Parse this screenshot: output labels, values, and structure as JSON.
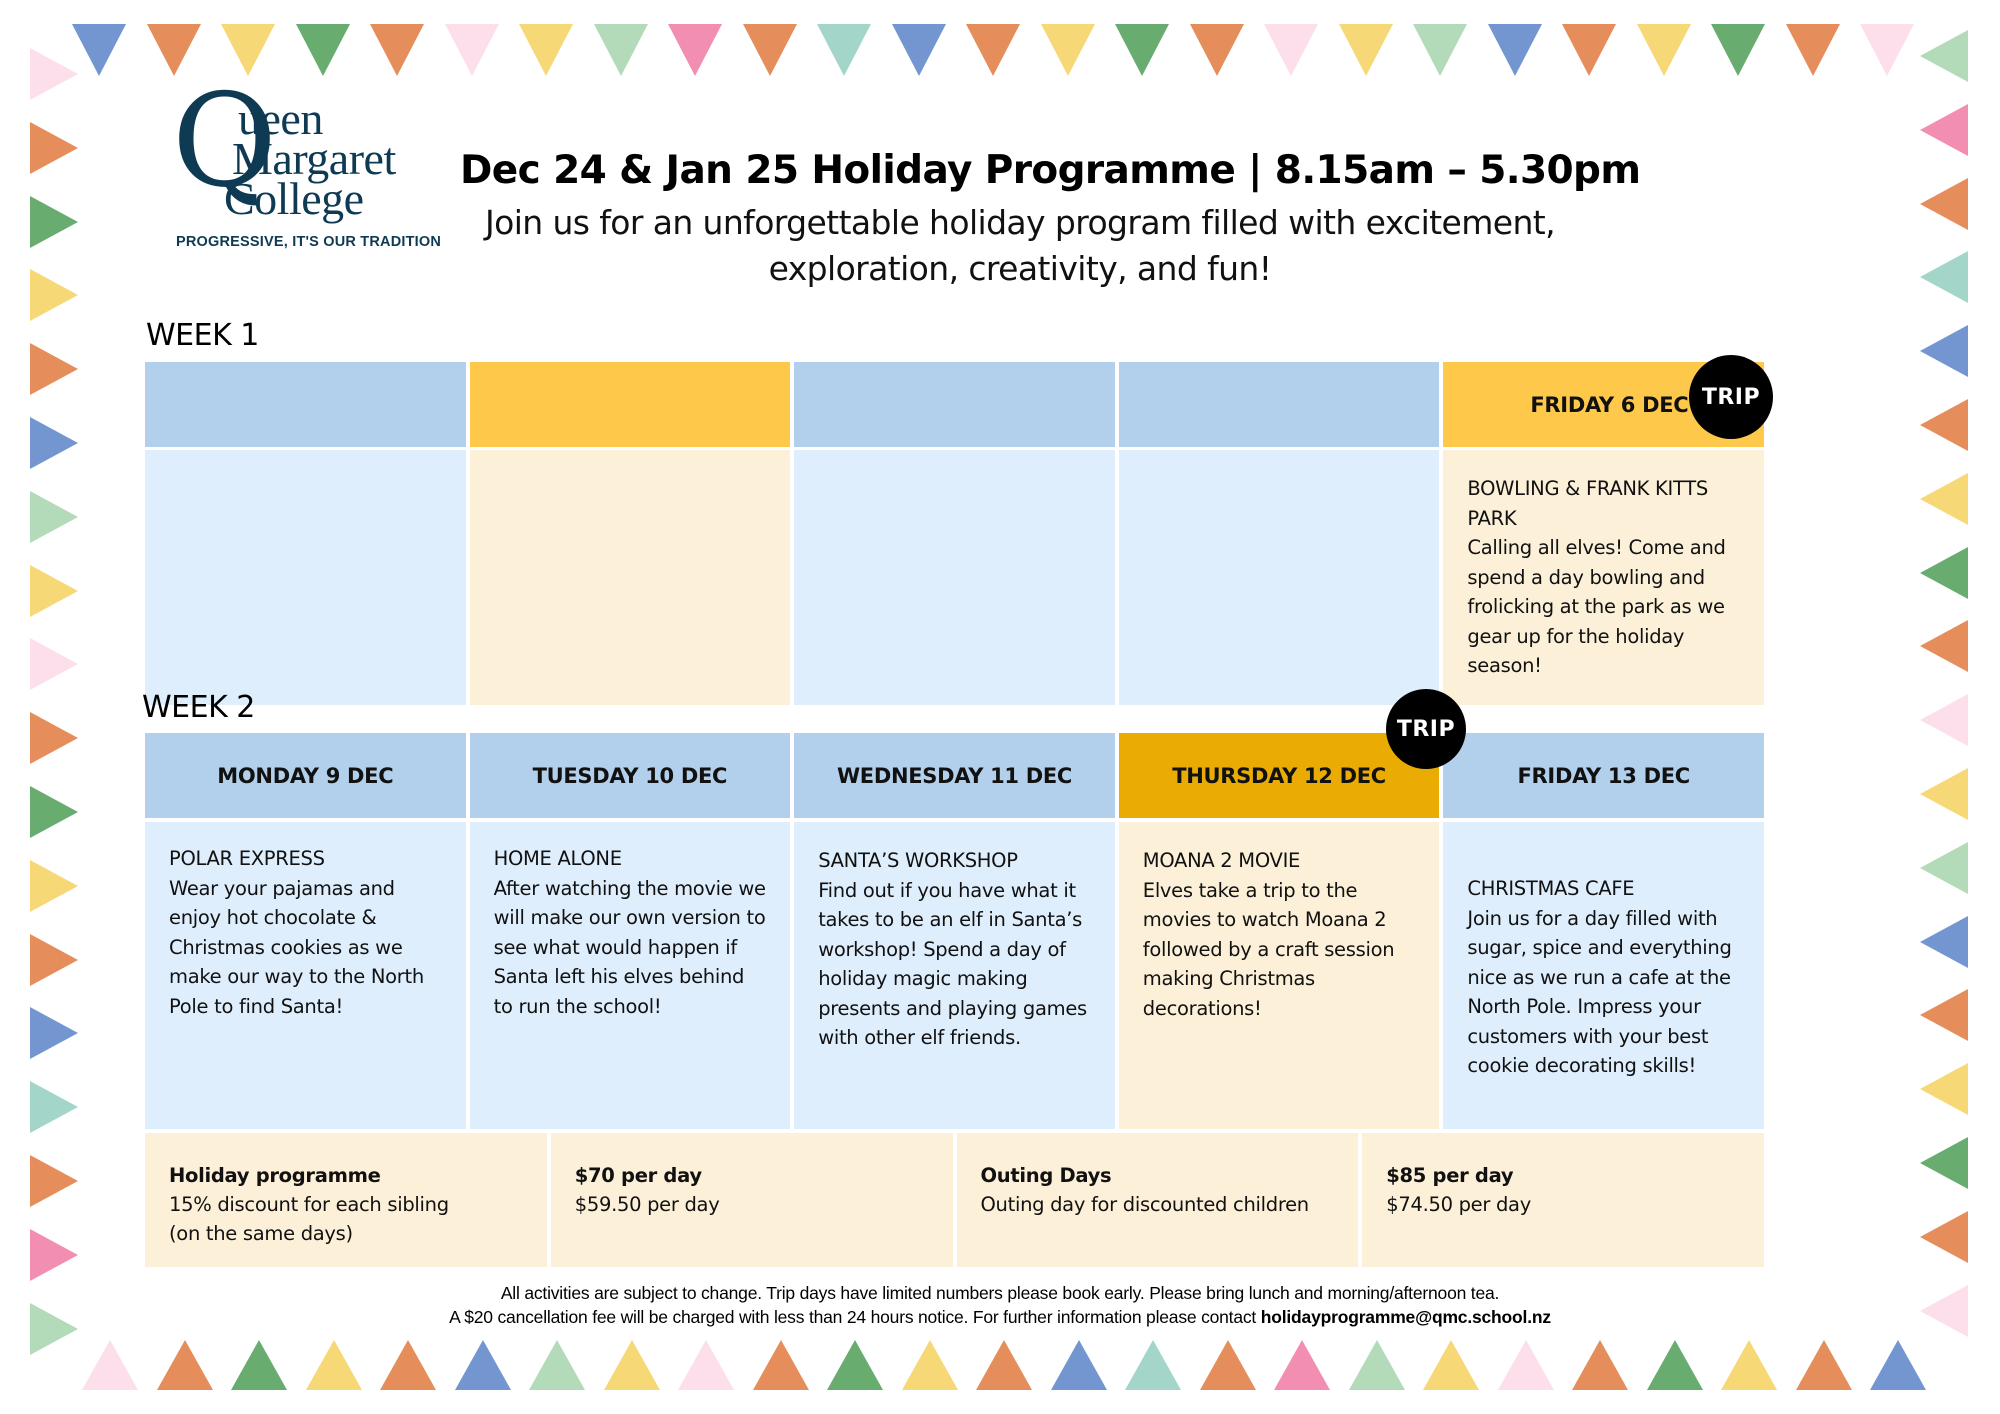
{
  "header": {
    "logo": {
      "line1": "ueen",
      "initial": "Q",
      "line2": "Margaret",
      "line3": "College",
      "tagline": "PROGRESSIVE, IT'S OUR TRADITION"
    },
    "title": "Dec 24 & Jan 25 Holiday Programme | 8.15am – 5.30pm",
    "subtitle": "Join us for an unforgettable holiday program filled with excitement, exploration, creativity, and fun!"
  },
  "week1": {
    "label": "WEEK 1",
    "days": [
      {
        "heading": "",
        "activity": "",
        "description": "",
        "trip": false
      },
      {
        "heading": "",
        "activity": "",
        "description": "",
        "trip": false
      },
      {
        "heading": "",
        "activity": "",
        "description": "",
        "trip": false
      },
      {
        "heading": "",
        "activity": "",
        "description": "",
        "trip": false
      },
      {
        "heading": "FRIDAY 6 DEC",
        "activity": "BOWLING & FRANK KITTS PARK",
        "description": "Calling all elves! Come and spend a day bowling and frolicking at the park as we gear up for the holiday season!",
        "trip": true
      }
    ]
  },
  "week2": {
    "label": "WEEK 2",
    "days": [
      {
        "heading": "MONDAY 9 DEC",
        "activity": "POLAR EXPRESS",
        "description": "Wear your pajamas and enjoy hot chocolate & Christmas cookies as we make our way to the North Pole to find Santa!",
        "trip": false
      },
      {
        "heading": "TUESDAY 10 DEC",
        "activity": "HOME ALONE",
        "description": "After watching the movie we will make our own version to see what would happen if Santa left his elves behind to run the school!",
        "trip": false
      },
      {
        "heading": "WEDNESDAY 11 DEC",
        "activity": "SANTA’S WORKSHOP",
        "description": "Find out if you have what it takes to be an elf in Santa’s workshop! Spend a day of holiday magic making presents and playing games with other elf friends.",
        "trip": false
      },
      {
        "heading": "THURSDAY 12 DEC",
        "activity": "MOANA 2 MOVIE",
        "description": "Elves take a trip to the movies to watch Moana 2 followed by a craft session making Christmas decorations!",
        "trip": true
      },
      {
        "heading": "FRIDAY 13 DEC",
        "activity": "CHRISTMAS CAFE",
        "description": "Join us for a day filled with sugar, spice and everything nice as we run a cafe at the North Pole. Impress your customers with your best cookie decorating skills!",
        "trip": false
      }
    ]
  },
  "trip_badge": "TRIP",
  "pricing": [
    {
      "title": "Holiday programme",
      "line1": "15% discount for each sibling",
      "line2": "(on the same days)"
    },
    {
      "title": "$70 per day",
      "line1": "$59.50 per day",
      "line2": ""
    },
    {
      "title": "Outing Days",
      "line1": "Outing day for discounted children",
      "line2": ""
    },
    {
      "title": "$85 per day",
      "line1": "$74.50 per day",
      "line2": ""
    }
  ],
  "footer": {
    "line1": "All activities are subject to change. Trip days have limited numbers please book early. Please bring lunch and morning/afternoon tea.",
    "line2_prefix": "A $20 cancellation fee will be charged with less than 24 hours notice. For further information please contact ",
    "email": "holidayprogramme@qmc.school.nz"
  },
  "colors": {
    "header_blue": "#b2d0ec",
    "body_blue": "#dfeefd",
    "header_gold": "#fec84a",
    "header_amber": "#eaab03",
    "body_cream": "#fcf0d8",
    "logo_navy": "#0f3a54",
    "bunting": {
      "blue": "#5b84c9",
      "orange": "#e07a3e",
      "yellow": "#f6d15f",
      "green": "#4f9e57",
      "pink": "#fbd9e6",
      "lightgreen": "#a6d3ad",
      "magenta": "#f07aa3",
      "teal": "#93cfc0"
    }
  },
  "bunting": {
    "top": [
      "blue",
      "orange",
      "yellow",
      "green",
      "orange",
      "pink",
      "yellow",
      "lightgreen",
      "magenta",
      "orange",
      "teal",
      "blue",
      "orange",
      "yellow",
      "green",
      "orange",
      "pink",
      "yellow",
      "lightgreen",
      "blue",
      "orange",
      "yellow",
      "green",
      "orange",
      "pink"
    ],
    "bottom": [
      "pink",
      "orange",
      "green",
      "yellow",
      "orange",
      "blue",
      "lightgreen",
      "yellow",
      "pink",
      "orange",
      "green",
      "yellow",
      "orange",
      "blue",
      "teal",
      "orange",
      "magenta",
      "lightgreen",
      "yellow",
      "pink",
      "orange",
      "green",
      "yellow",
      "orange",
      "blue"
    ],
    "left": [
      "pink",
      "orange",
      "green",
      "yellow",
      "orange",
      "blue",
      "lightgreen",
      "yellow",
      "pink",
      "orange",
      "green",
      "yellow",
      "orange",
      "blue",
      "teal",
      "orange",
      "magenta",
      "lightgreen"
    ],
    "right": [
      "lightgreen",
      "magenta",
      "orange",
      "teal",
      "blue",
      "orange",
      "yellow",
      "green",
      "orange",
      "pink",
      "yellow",
      "lightgreen",
      "blue",
      "orange",
      "yellow",
      "green",
      "orange",
      "pink"
    ]
  }
}
